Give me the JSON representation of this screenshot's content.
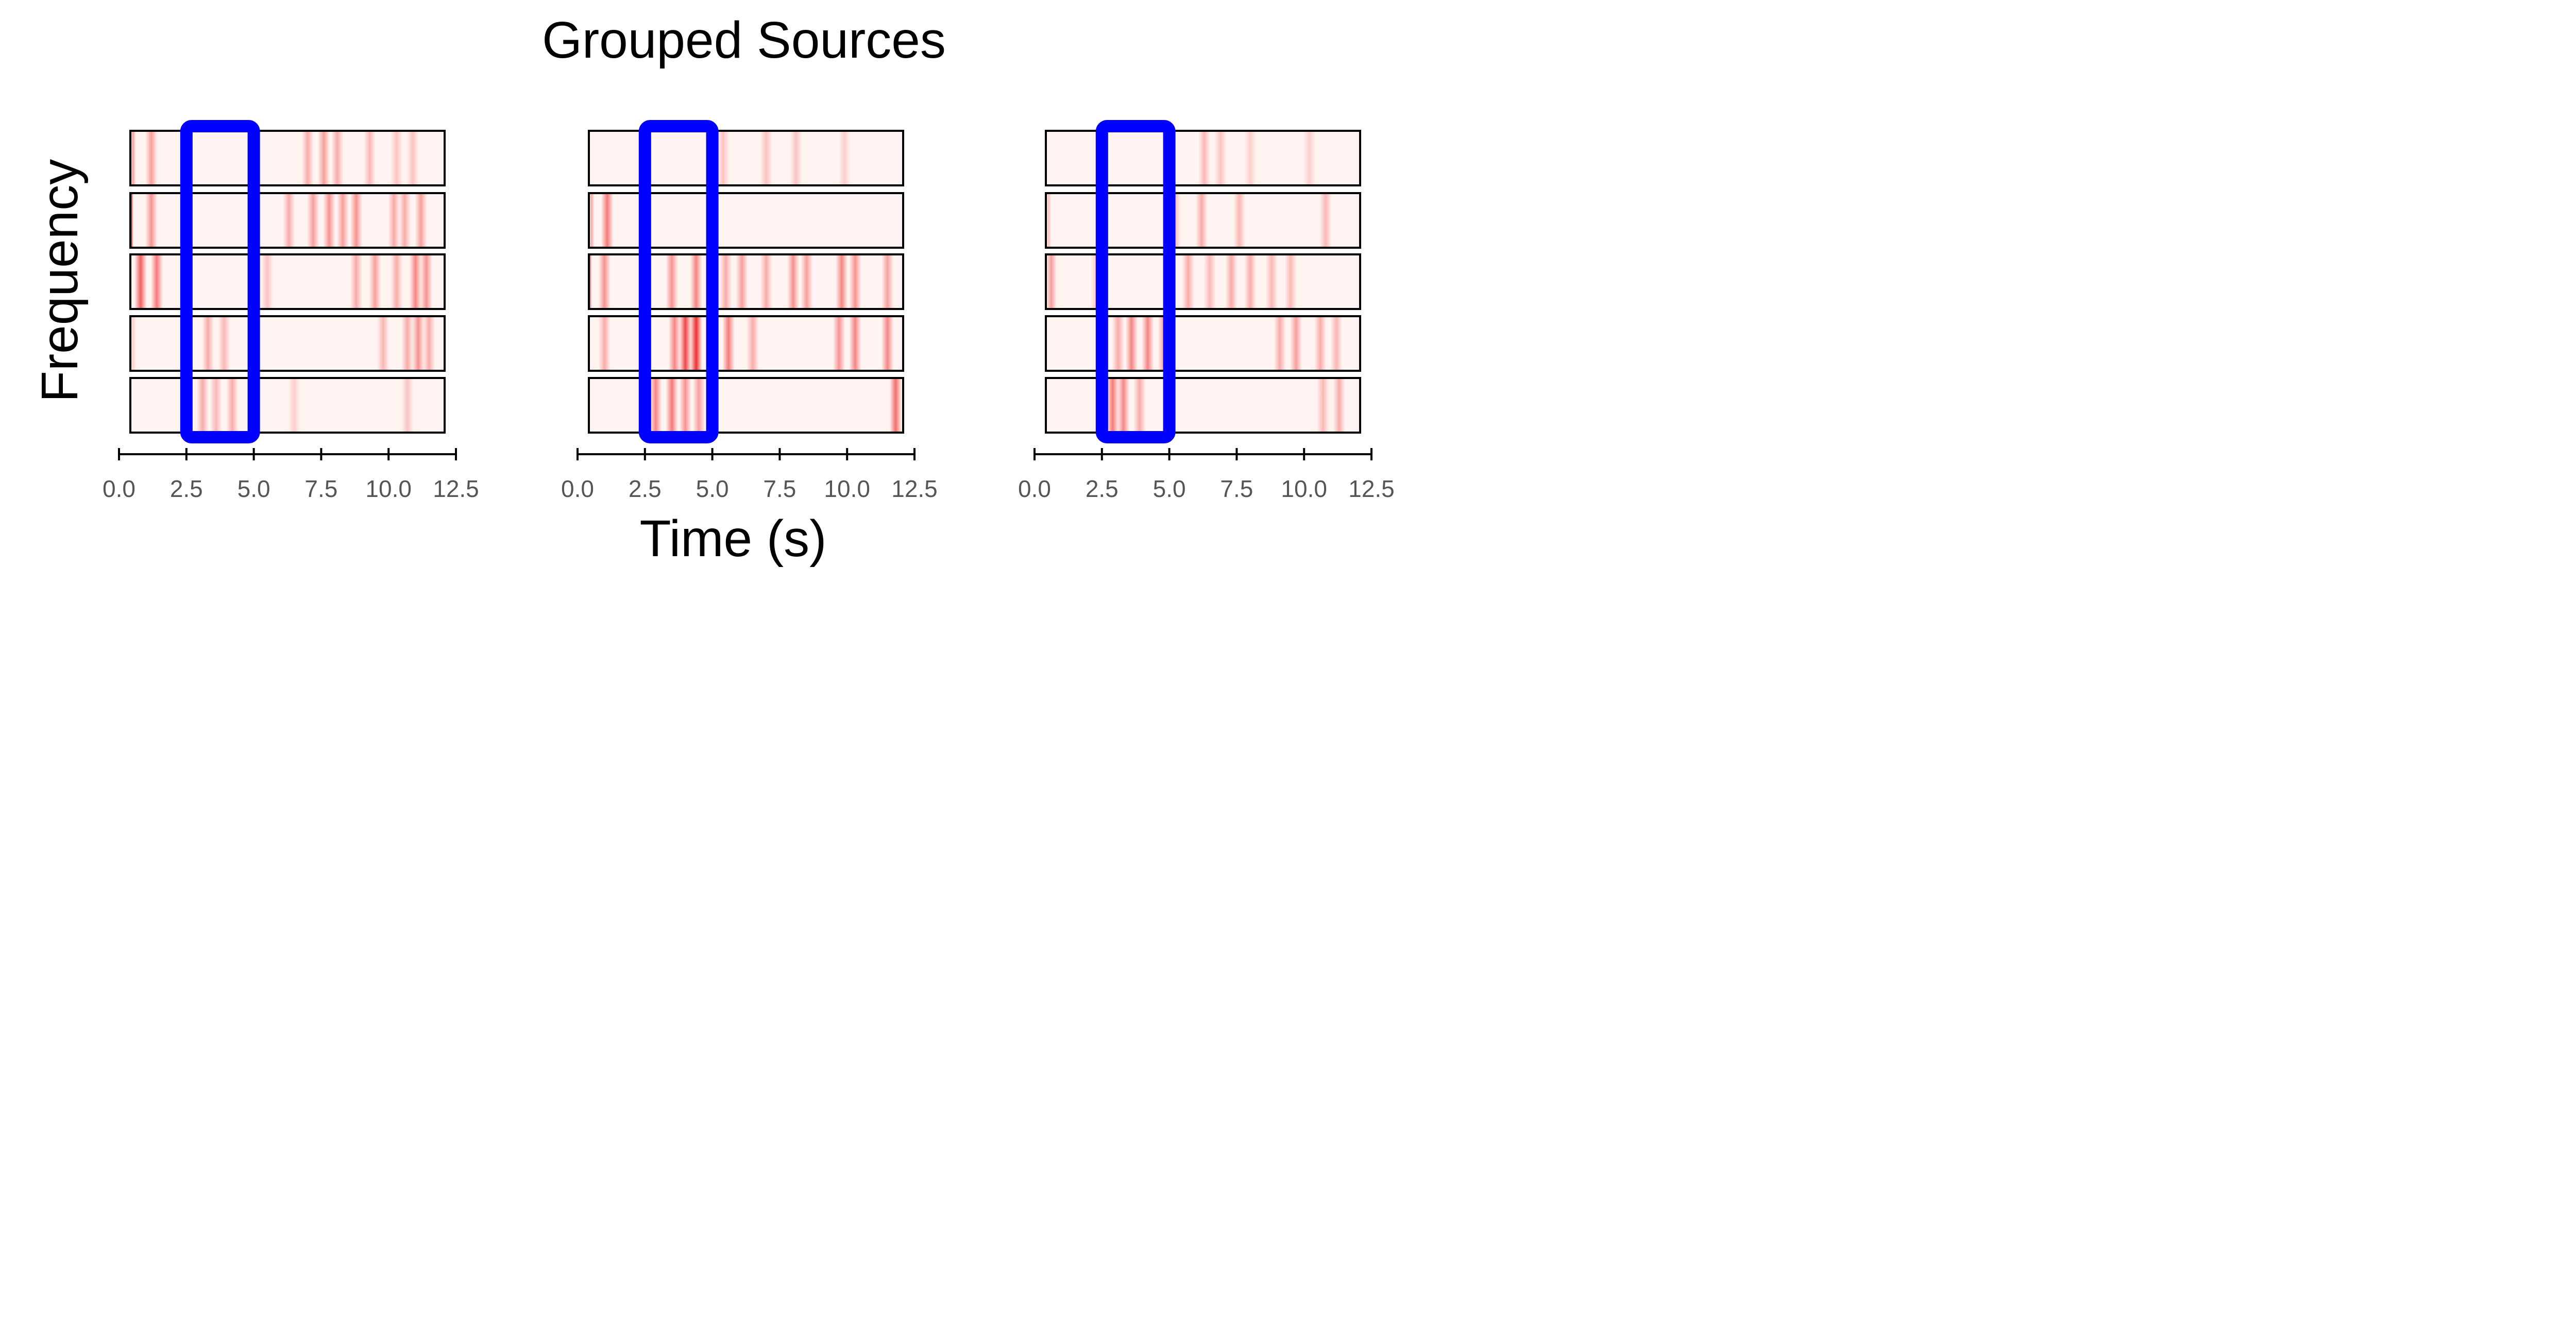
{
  "figure": {
    "title": "Grouped Sources",
    "ylabel": "Frequency",
    "xlabel": "Time (s)"
  },
  "chart_data": [
    {
      "type": "heatmap",
      "rows": 5,
      "xlim": [
        0.0,
        12.5
      ],
      "x_ticks": [
        "0.0",
        "2.5",
        "5.0",
        "7.5",
        "10.0",
        "12.5"
      ],
      "highlight": {
        "x_range": [
          2.5,
          5.0
        ],
        "color": "#0000ff"
      },
      "colormap": [
        "#fff4f1",
        "#e60000"
      ],
      "bands": [
        [
          [
            0.1,
            0.6
          ],
          [
            0.4,
            0.35
          ],
          [
            1.2,
            0.35
          ],
          [
            7.0,
            0.3
          ],
          [
            7.6,
            0.35
          ],
          [
            8.1,
            0.3
          ],
          [
            9.3,
            0.25
          ],
          [
            10.3,
            0.2
          ],
          [
            10.9,
            0.2
          ]
        ],
        [
          [
            0.0,
            0.8
          ],
          [
            0.3,
            0.7
          ],
          [
            1.2,
            0.4
          ],
          [
            6.3,
            0.3
          ],
          [
            7.2,
            0.35
          ],
          [
            7.8,
            0.4
          ],
          [
            8.3,
            0.35
          ],
          [
            8.8,
            0.4
          ],
          [
            10.2,
            0.3
          ],
          [
            10.6,
            0.3
          ],
          [
            11.2,
            0.35
          ]
        ],
        [
          [
            0.8,
            0.6
          ],
          [
            1.4,
            0.5
          ],
          [
            5.5,
            0.2
          ],
          [
            8.8,
            0.3
          ],
          [
            9.5,
            0.35
          ],
          [
            10.3,
            0.3
          ],
          [
            11.0,
            0.45
          ],
          [
            11.4,
            0.4
          ]
        ],
        [
          [
            0.4,
            0.15
          ],
          [
            3.3,
            0.3
          ],
          [
            3.9,
            0.25
          ],
          [
            9.8,
            0.25
          ],
          [
            10.7,
            0.3
          ],
          [
            11.1,
            0.4
          ],
          [
            11.5,
            0.3
          ]
        ],
        [
          [
            3.1,
            0.3
          ],
          [
            3.6,
            0.25
          ],
          [
            4.2,
            0.3
          ],
          [
            6.5,
            0.15
          ],
          [
            10.7,
            0.2
          ]
        ]
      ]
    },
    {
      "type": "heatmap",
      "rows": 5,
      "xlim": [
        0.0,
        12.5
      ],
      "x_ticks": [
        "0.0",
        "2.5",
        "5.0",
        "7.5",
        "10.0",
        "12.5"
      ],
      "highlight": {
        "x_range": [
          2.5,
          5.0
        ],
        "color": "#0000ff"
      },
      "colormap": [
        "#fff4f1",
        "#e60000"
      ],
      "bands": [
        [
          [
            5.4,
            0.2
          ],
          [
            7.0,
            0.2
          ],
          [
            8.1,
            0.2
          ],
          [
            9.9,
            0.15
          ]
        ],
        [
          [
            0.4,
            0.3
          ],
          [
            1.1,
            0.5
          ]
        ],
        [
          [
            0.3,
            0.5
          ],
          [
            1.0,
            0.4
          ],
          [
            3.5,
            0.4
          ],
          [
            4.4,
            0.45
          ],
          [
            5.5,
            0.3
          ],
          [
            6.1,
            0.35
          ],
          [
            7.0,
            0.3
          ],
          [
            8.0,
            0.4
          ],
          [
            8.5,
            0.35
          ],
          [
            9.8,
            0.45
          ],
          [
            10.3,
            0.4
          ],
          [
            11.5,
            0.35
          ]
        ],
        [
          [
            0.2,
            0.4
          ],
          [
            1.0,
            0.3
          ],
          [
            3.6,
            0.45
          ],
          [
            4.0,
            0.7
          ],
          [
            4.4,
            0.8
          ],
          [
            5.6,
            0.5
          ],
          [
            6.5,
            0.3
          ],
          [
            9.7,
            0.4
          ],
          [
            10.3,
            0.45
          ],
          [
            11.5,
            0.45
          ]
        ],
        [
          [
            2.9,
            0.45
          ],
          [
            3.5,
            0.5
          ],
          [
            4.0,
            0.4
          ],
          [
            4.5,
            0.35
          ],
          [
            11.8,
            0.55
          ]
        ]
      ]
    },
    {
      "type": "heatmap",
      "rows": 5,
      "xlim": [
        0.0,
        12.5
      ],
      "x_ticks": [
        "0.0",
        "2.5",
        "5.0",
        "7.5",
        "10.0",
        "12.5"
      ],
      "highlight": {
        "x_range": [
          2.5,
          5.0
        ],
        "color": "#0000ff"
      },
      "colormap": [
        "#fff4f1",
        "#e60000"
      ],
      "bands": [
        [
          [
            6.3,
            0.25
          ],
          [
            6.9,
            0.2
          ],
          [
            8.0,
            0.15
          ],
          [
            10.2,
            0.15
          ]
        ],
        [
          [
            0.4,
            0.2
          ],
          [
            5.2,
            0.25
          ],
          [
            6.2,
            0.3
          ],
          [
            7.6,
            0.25
          ],
          [
            10.8,
            0.25
          ]
        ],
        [
          [
            0.2,
            0.45
          ],
          [
            0.6,
            0.35
          ],
          [
            2.3,
            0.2
          ],
          [
            5.7,
            0.3
          ],
          [
            6.5,
            0.25
          ],
          [
            7.3,
            0.3
          ],
          [
            8.0,
            0.3
          ],
          [
            8.8,
            0.25
          ],
          [
            9.5,
            0.25
          ]
        ],
        [
          [
            3.1,
            0.3
          ],
          [
            3.6,
            0.45
          ],
          [
            4.2,
            0.45
          ],
          [
            4.8,
            0.35
          ],
          [
            9.1,
            0.3
          ],
          [
            9.7,
            0.35
          ],
          [
            10.6,
            0.3
          ],
          [
            11.2,
            0.25
          ]
        ],
        [
          [
            2.5,
            0.4
          ],
          [
            2.9,
            0.5
          ],
          [
            3.3,
            0.45
          ],
          [
            3.9,
            0.3
          ],
          [
            10.7,
            0.25
          ],
          [
            11.3,
            0.3
          ]
        ]
      ]
    }
  ]
}
